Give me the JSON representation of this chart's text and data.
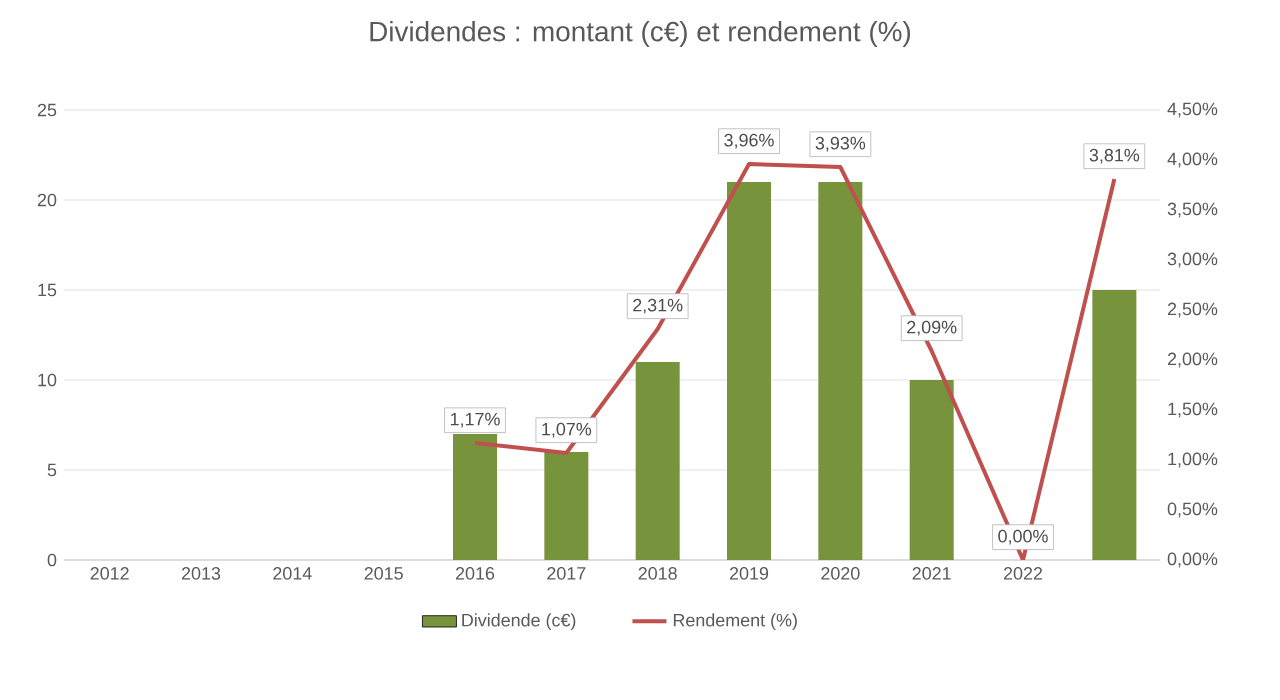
{
  "chart_data": {
    "type": "bar",
    "title": "Dividendes : montant (c€) et rendement (%)",
    "categories": [
      "2012",
      "2013",
      "2014",
      "2015",
      "2016",
      "2017",
      "2018",
      "2019",
      "2020",
      "2021",
      "2022",
      null
    ],
    "series": [
      {
        "name": "Dividende (c€)",
        "color": "#77933c",
        "values": [
          null,
          null,
          null,
          null,
          7,
          6,
          11,
          21,
          21,
          10,
          0,
          15
        ]
      },
      {
        "name": "Rendement (%)",
        "type": "line",
        "axis": "y2",
        "color": "#c0504d",
        "values": [
          null,
          null,
          null,
          null,
          1.17,
          1.07,
          2.31,
          3.96,
          3.93,
          2.09,
          0,
          3.81
        ],
        "value_labels": [
          null,
          null,
          null,
          null,
          "1,17%",
          "1,07%",
          "2,31%",
          "3,96%",
          "3,93%",
          "2,09%",
          "0,00%",
          "3,81%"
        ]
      }
    ],
    "ylim": [
      0,
      25
    ],
    "yticks": [
      0,
      5,
      10,
      15,
      20,
      25
    ],
    "y2lim": [
      0,
      4.5
    ],
    "y2ticks": [
      {
        "value": 0,
        "label": "0,00%"
      },
      {
        "value": 0.5,
        "label": "0,50%"
      },
      {
        "value": 1,
        "label": "1,00%"
      },
      {
        "value": 1.5,
        "label": "1,50%"
      },
      {
        "value": 2,
        "label": "2,00%"
      },
      {
        "value": 2.5,
        "label": "2,50%"
      },
      {
        "value": 3,
        "label": "3,00%"
      },
      {
        "value": 3.5,
        "label": "3,50%"
      },
      {
        "value": 4,
        "label": "4,00%"
      },
      {
        "value": 4.5,
        "label": "4,50%"
      }
    ],
    "grid": "y",
    "legend": "bottom"
  }
}
